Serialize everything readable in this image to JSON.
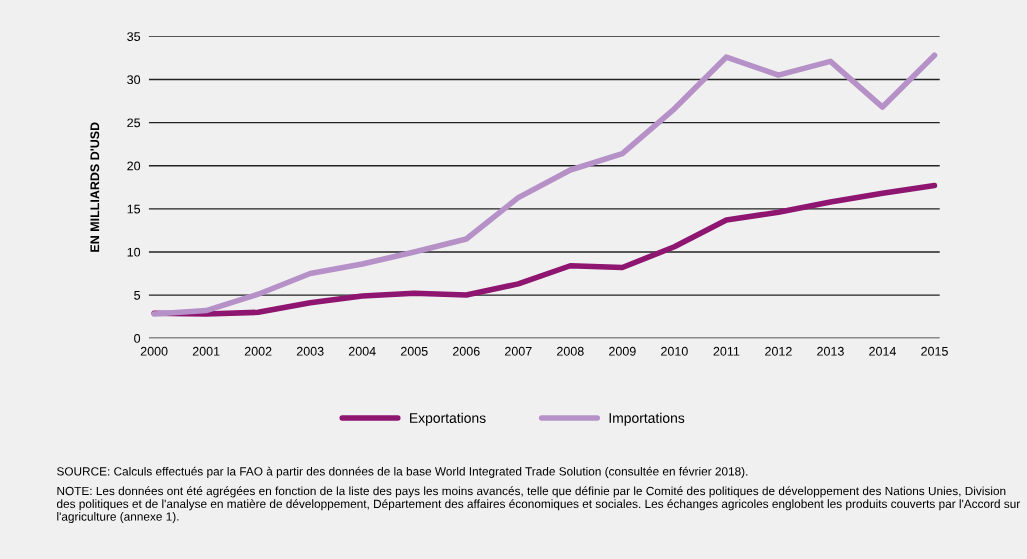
{
  "chart_data": {
    "type": "line",
    "ylabel": "EN MILLIARDS D'USD",
    "categories": [
      "2000",
      "2001",
      "2002",
      "2003",
      "2004",
      "2005",
      "2006",
      "2007",
      "2008",
      "2009",
      "2010",
      "2011",
      "2012",
      "2013",
      "2014",
      "2015"
    ],
    "series": [
      {
        "name": "Exportations",
        "color": "#8e1570",
        "values": [
          2.9,
          2.8,
          3.0,
          4.1,
          4.9,
          5.2,
          5.0,
          6.3,
          8.4,
          8.2,
          10.6,
          13.7,
          14.6,
          15.8,
          16.8,
          17.7
        ]
      },
      {
        "name": "Importations",
        "color": "#b591c8",
        "values": [
          2.8,
          3.2,
          5.1,
          7.5,
          8.6,
          10.0,
          11.5,
          16.3,
          19.5,
          21.4,
          26.6,
          32.6,
          30.5,
          32.1,
          26.8,
          32.8
        ]
      }
    ],
    "ylim": [
      0,
      35
    ],
    "yticks": [
      0,
      5,
      10,
      15,
      20,
      25,
      30,
      35
    ],
    "grid": "y",
    "legend": "bottom",
    "marker": "none",
    "line_style": "solid",
    "annotations": [
      "SOURCE: Calculs effectués par la FAO à partir des données de la base World Integrated Trade Solution (consultée en février 2018).",
      "NOTE: Les données ont été agrégées en fonction de la liste des pays les moins avancés, telle que définie par le Comité des politiques de développement des Nations Unies, Division des politiques et de l'analyse en matière de développement, Département des affaires économiques et sociales. Les échanges agricoles englobent les produits couverts par l'Accord sur l'agriculture (annexe 1)."
    ]
  }
}
